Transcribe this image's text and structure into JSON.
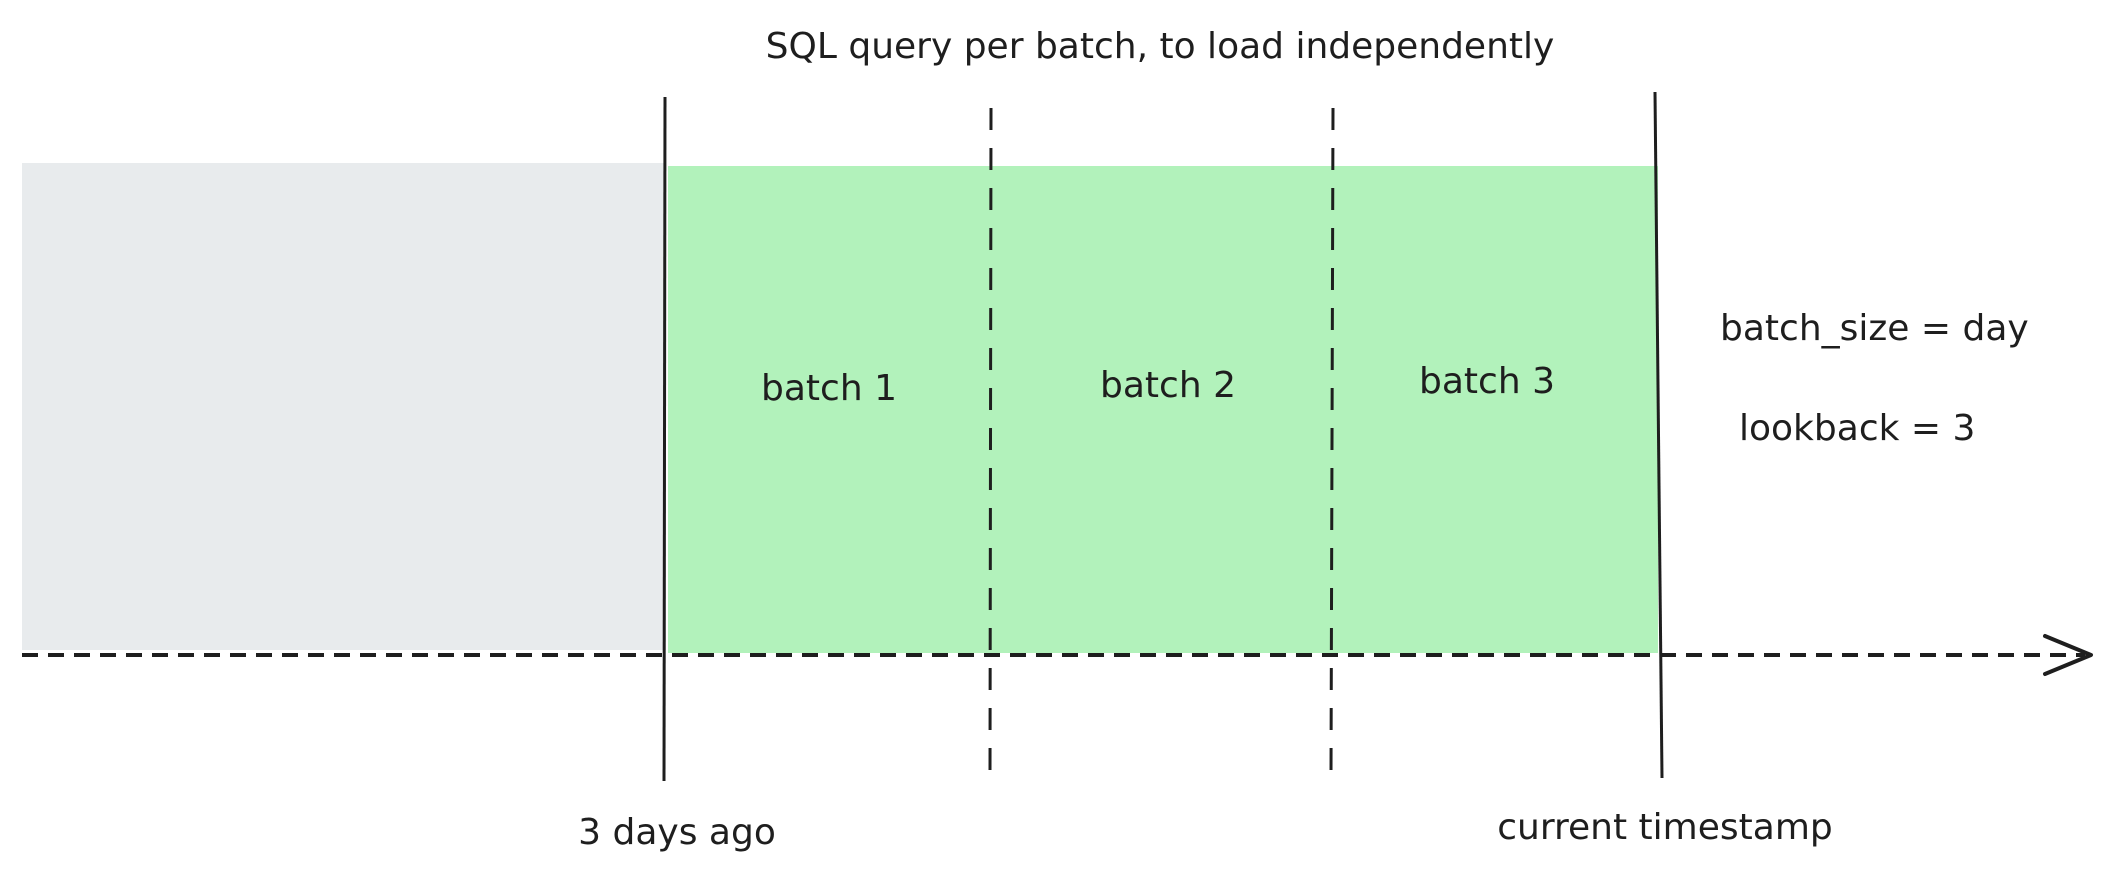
{
  "title": "SQL query per batch, to load independently",
  "batches": [
    {
      "label": "batch 1"
    },
    {
      "label": "batch 2"
    },
    {
      "label": "batch 3"
    }
  ],
  "params": {
    "batch_size": "batch_size = day",
    "lookback": "lookback = 3"
  },
  "markers": {
    "start": "3 days ago",
    "end": "current timestamp"
  },
  "colors": {
    "past_region": "#e8ebed",
    "batch_region": "#b2f2bb",
    "stroke": "#1e1e1e"
  }
}
